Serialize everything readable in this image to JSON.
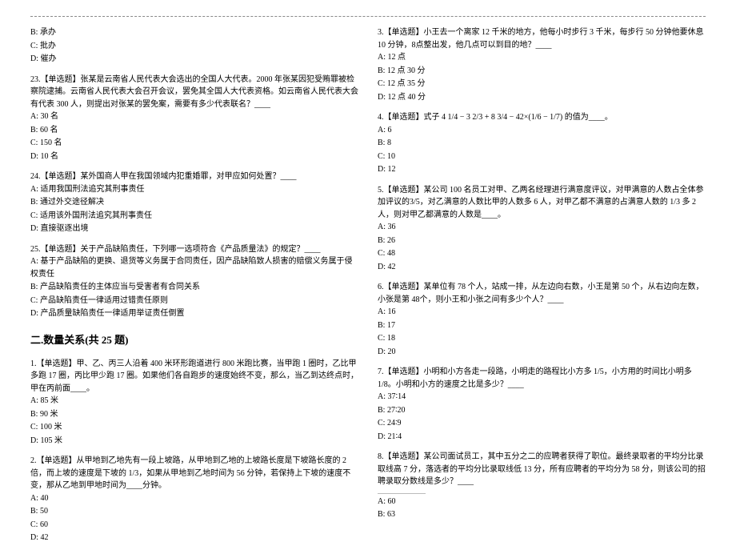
{
  "left": {
    "q22_opts": [
      "B: 承办",
      "C: 批办",
      "D: 催办"
    ],
    "q23": {
      "stem": "23.【单选题】张某是云南省人民代表大会选出的全国人大代表。2000 年张某因犯受贿罪被检察院逮捕。云南省人民代表大会召开会议，罢免其全国人大代表资格。如云南省人民代表大会有代表 300 人，则提出对张某的罢免案，需要有多少代表联名？____",
      "opts": [
        "A: 30 名",
        "B: 60 名",
        "C: 150 名",
        "D: 10 名"
      ]
    },
    "q24": {
      "stem": "24.【单选题】某外国商人甲在我国领域内犯重婚罪，对甲应如何处置？____",
      "opts": [
        "A: 适用我国刑法追究其刑事责任",
        "B: 通过外交途径解决",
        "C: 适用该外国刑法追究其刑事责任",
        "D: 直接驱逐出境"
      ]
    },
    "q25": {
      "stem": "25.【单选题】关于产品缺陷责任，下列哪一选项符合《产品质量法》的规定？____",
      "opts": [
        "A: 基于产品缺陷的更换、退货等义务属于合同责任，因产品缺陷致人损害的赔偿义务属于侵权责任",
        "B: 产品缺陷责任的主体应当与受害者有合同关系",
        "C: 产品缺陷责任一律适用过错责任原则",
        "D: 产品质量缺陷责任一律适用举证责任倒置"
      ]
    },
    "section": "二.数量关系(共 25 题)",
    "q1": {
      "stem": "1.【单选题】甲、乙、丙三人沿着 400 米环形跑道进行 800 米跑比赛，当甲跑 1 圈时，乙比甲多跑 17 圈，丙比甲少跑 17 圈。如果他们各自跑步的速度始终不变，那么，当乙到达终点时，甲在丙前面____。",
      "opts": [
        "A: 85 米",
        "B: 90 米",
        "C: 100 米",
        "D: 105 米"
      ]
    },
    "q2": {
      "stem": "2.【单选题】从甲地到乙地先有一段上坡路，从甲地到乙地的上坡路长度是下坡路长度的 2 倍，而上坡的速度是下坡的 1/3，如果从甲地到乙地时间为 56 分钟，若保持上下坡的速度不变，那从乙地到甲地时间为____分钟。",
      "opts": [
        "A: 40",
        "B: 50",
        "C: 60",
        "D: 42"
      ]
    }
  },
  "right": {
    "q3": {
      "stem": "3.【单选题】小王去一个离家 12 千米的地方，他每小时步行 3 千米，每步行 50 分钟他要休息 10 分钟，8点整出发，他几点可以到目的地？____",
      "opts": [
        "A: 12 点",
        "B: 12 点 30 分",
        "C: 12 点 35 分",
        "D: 12 点 40 分"
      ]
    },
    "q4": {
      "stem_prefix": "4.【单选题】式子",
      "formula": "4 1/4 − 3 2/3 + 8 3/4 − 42×(1/6 − 1/7)",
      "stem_suffix": " 的值为____。",
      "opts": [
        "A: 6",
        "B: 8",
        "C: 10",
        "D: 12"
      ]
    },
    "q5": {
      "stem": "5.【单选题】某公司 100 名员工对甲、乙两名经理进行满意度评议，对甲满意的人数占全体参加评议的3/5，对乙满意的人数比甲的人数多 6 人，对甲乙都不满意的占满意人数的 1/3 多 2 人，则对甲乙都满意的人数是____。",
      "opts": [
        "A: 36",
        "B: 26",
        "C: 48",
        "D: 42"
      ]
    },
    "q6": {
      "stem": "6.【单选题】某单位有 78 个人，站成一排，从左边向右数，小王是第 50 个，从右边向左数，小张是第 48个，则小王和小张之间有多少个人？____",
      "opts": [
        "A: 16",
        "B: 17",
        "C: 18",
        "D: 20"
      ]
    },
    "q7": {
      "stem": "7.【单选题】小明和小方各走一段路，小明走的路程比小方多 1/5，小方用的时间比小明多 1/8。小明和小方的速度之比是多少？____",
      "opts": [
        "A: 37∶14",
        "B: 27∶20",
        "C: 24∶9",
        "D: 21∶4"
      ]
    },
    "q8": {
      "stem": "8.【单选题】某公司面试员工，其中五分之二的应聘者获得了职位。最终录取者的平均分比录取线高 7 分，落选者的平均分比录取线低 13 分，所有应聘者的平均分为 58 分，则该公司的招聘录取分数线是多少？____",
      "opts": [
        "A: 60",
        "B: 63"
      ]
    }
  }
}
